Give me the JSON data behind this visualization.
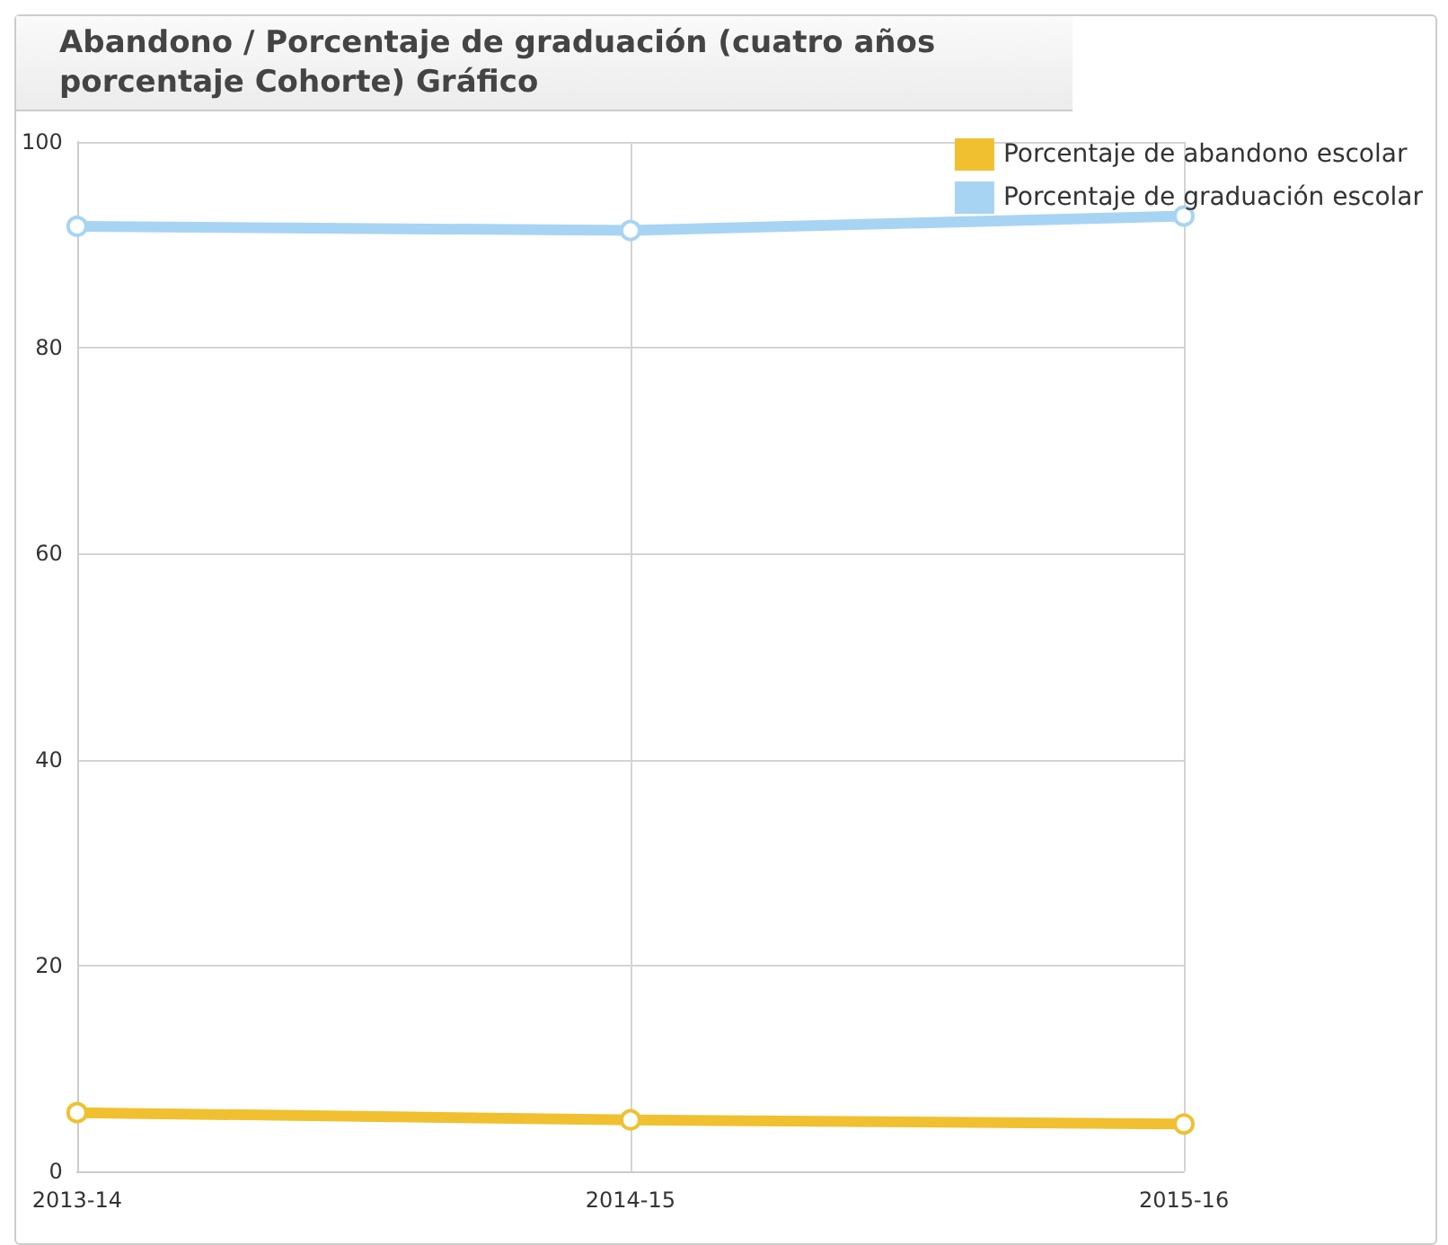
{
  "chart_data": {
    "type": "line",
    "title": "Abandono / Porcentaje de graduación (cuatro años porcentaje Cohorte) Gráfico",
    "categories": [
      "2013-14",
      "2014-15",
      "2015-16"
    ],
    "series": [
      {
        "name": "Porcentaje de abandono escolar",
        "color": "#f0c030",
        "values": [
          5.7,
          5.0,
          4.6
        ]
      },
      {
        "name": "Porcentaje de graduación escolar",
        "color": "#a8d4f4",
        "values": [
          91.8,
          91.4,
          92.8
        ]
      }
    ],
    "ylim": [
      0,
      100
    ],
    "yticks": [
      0,
      20,
      40,
      60,
      80,
      100
    ],
    "grid": true,
    "legend": "top right",
    "marker": "circle",
    "line_style": "solid"
  }
}
